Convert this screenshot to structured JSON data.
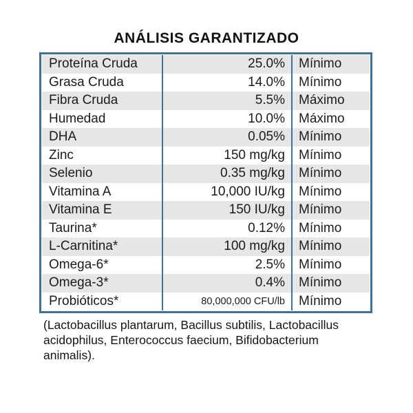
{
  "title": "ANÁLISIS GARANTIZADO",
  "colors": {
    "border": "#3f7296",
    "alt_row": "#e6e6e6",
    "text": "#1b1b1b"
  },
  "table": {
    "rows": [
      {
        "name": "Proteína Cruda",
        "value": "25.0%",
        "qualifier": "Mínimo",
        "small_value": false
      },
      {
        "name": "Grasa Cruda",
        "value": "14.0%",
        "qualifier": "Mínimo",
        "small_value": false
      },
      {
        "name": "Fibra Cruda",
        "value": "5.5%",
        "qualifier": "Máximo",
        "small_value": false
      },
      {
        "name": "Humedad",
        "value": "10.0%",
        "qualifier": "Máximo",
        "small_value": false
      },
      {
        "name": "DHA",
        "value": "0.05%",
        "qualifier": "Mínimo",
        "small_value": false
      },
      {
        "name": "Zinc",
        "value": "150 mg/kg",
        "qualifier": "Mínimo",
        "small_value": false
      },
      {
        "name": "Selenio",
        "value": "0.35 mg/kg",
        "qualifier": "Mínimo",
        "small_value": false
      },
      {
        "name": "Vitamina A",
        "value": "10,000 IU/kg",
        "qualifier": "Mínimo",
        "small_value": false
      },
      {
        "name": "Vitamina E",
        "value": "150 IU/kg",
        "qualifier": "Mínimo",
        "small_value": false
      },
      {
        "name": "Taurina*",
        "value": "0.12%",
        "qualifier": "Mínimo",
        "small_value": false
      },
      {
        "name": "L-Carnitina*",
        "value": "100 mg/kg",
        "qualifier": "Mínimo",
        "small_value": false
      },
      {
        "name": "Omega-6*",
        "value": "2.5%",
        "qualifier": "Mínimo",
        "small_value": false
      },
      {
        "name": "Omega-3*",
        "value": "0.4%",
        "qualifier": "Mínimo",
        "small_value": false
      },
      {
        "name": "Probióticos*",
        "value": "80,000,000 CFU/lb",
        "qualifier": "Mínimo",
        "small_value": true
      }
    ]
  },
  "footnote": "(Lactobacillus plantarum, Bacillus subtilis, Lactobacillus acidophilus, Enterococcus faecium, Bifidobacterium animalis)."
}
